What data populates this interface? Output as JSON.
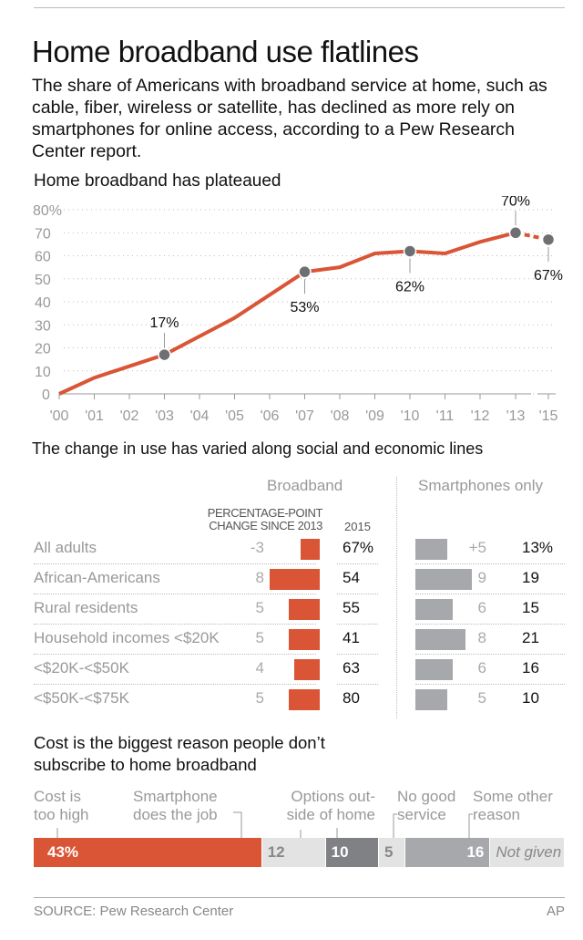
{
  "header": {
    "title": "Home broadband use flatlines",
    "dek": "The share of Americans with broadband service at home, such as cable, fiber, wireless or satellite, has declined as more rely on smartphones for online access, according to a Pew Research Center report."
  },
  "chart_data": [
    {
      "type": "line",
      "title": "Home broadband has plateaued",
      "xlabel": "",
      "ylabel": "",
      "x": [
        "'00",
        "'01",
        "'02",
        "'03",
        "'04",
        "'05",
        "'06",
        "'07",
        "'08",
        "'09",
        "'10",
        "'11",
        "'12",
        "'13",
        "'15"
      ],
      "values": [
        0,
        7,
        12,
        17,
        25,
        33,
        43,
        53,
        55,
        61,
        62,
        61,
        66,
        70,
        67
      ],
      "ylim": [
        0,
        80
      ],
      "yticks": [
        "0",
        "10",
        "20",
        "30",
        "40",
        "50",
        "60",
        "70",
        "80%"
      ],
      "grid": true,
      "annotations": [
        {
          "x": "'03",
          "label": "17%"
        },
        {
          "x": "'07",
          "label": "53%"
        },
        {
          "x": "'10",
          "label": "62%"
        },
        {
          "x": "'13",
          "label": "70%"
        },
        {
          "x": "'15",
          "label": "67%"
        }
      ],
      "colors": {
        "line": "#d95535",
        "marker": "#6e6f73"
      }
    },
    {
      "type": "table",
      "title": "The change in use has varied along social and economic lines",
      "groups": {
        "broadband": "Broadband",
        "smartphones": "Smartphones only"
      },
      "columns": {
        "change": "PERCENTAGE-POINT CHANGE SINCE 2013",
        "year": "2015"
      },
      "rows": [
        {
          "label": "All adults",
          "bb_change": -3,
          "bb_change_label": "-3",
          "bb_2015": "67%",
          "sp_change": 5,
          "sp_change_label": "+5",
          "sp_2015": "13%"
        },
        {
          "label": "African-Americans",
          "bb_change": 8,
          "bb_change_label": "8",
          "bb_2015": "54",
          "sp_change": 9,
          "sp_change_label": "9",
          "sp_2015": "19"
        },
        {
          "label": "Rural residents",
          "bb_change": 5,
          "bb_change_label": "5",
          "bb_2015": "55",
          "sp_change": 6,
          "sp_change_label": "6",
          "sp_2015": "15"
        },
        {
          "label": "Household incomes <$20K",
          "bb_change": 5,
          "bb_change_label": "5",
          "bb_2015": "41",
          "sp_change": 8,
          "sp_change_label": "8",
          "sp_2015": "21"
        },
        {
          "label": "<$20K-<$50K",
          "bb_change": 4,
          "bb_change_label": "4",
          "bb_2015": "63",
          "sp_change": 6,
          "sp_change_label": "6",
          "sp_2015": "16"
        },
        {
          "label": "<$50K-<$75K",
          "bb_change": 5,
          "bb_change_label": "5",
          "bb_2015": "80",
          "sp_change": 5,
          "sp_change_label": "5",
          "sp_2015": "10"
        }
      ],
      "colors": {
        "broadband": "#d95535",
        "smartphones": "#a7a8ab"
      }
    },
    {
      "type": "bar",
      "stacked": true,
      "title": "Cost is the biggest reason people don’t subscribe to home broadband",
      "segments": [
        {
          "name": "Cost is too high",
          "value": 43,
          "label": "43%",
          "color": "#d95535"
        },
        {
          "name": "Smartphone does the job",
          "value": 12,
          "label": "12",
          "color": "#e3e3e3"
        },
        {
          "name": "Options outside of home",
          "value": 10,
          "label": "10",
          "color": "#808185"
        },
        {
          "name": "No good service",
          "value": 5,
          "label": "5",
          "color": "#e3e3e3"
        },
        {
          "name": "Some other reason",
          "value": 16,
          "label": "16",
          "color": "#a7a8ab"
        },
        {
          "name": "",
          "value": 14,
          "label": "Not given",
          "color": "#e3e3e3"
        }
      ]
    }
  ],
  "segment_labels": [
    "Cost is too high",
    "Smartphone does the job",
    "Options out-side of home",
    "No good service",
    "Some other reason"
  ],
  "footer": {
    "source": "SOURCE: Pew Research Center",
    "credit": "AP"
  }
}
